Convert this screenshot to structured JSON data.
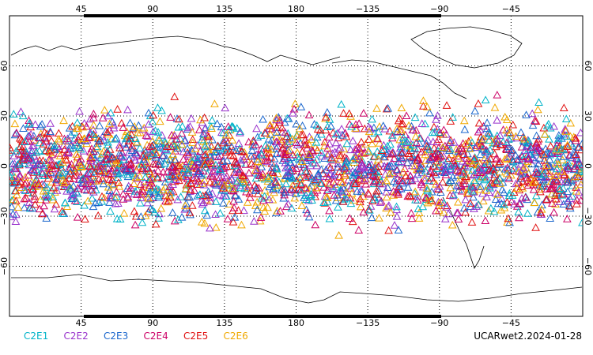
{
  "map": {
    "lon_ticks": [
      {
        "lon": 45,
        "label": "45"
      },
      {
        "lon": 90,
        "label": "90"
      },
      {
        "lon": 135,
        "label": "135"
      },
      {
        "lon": 180,
        "label": "180"
      },
      {
        "lon": 225,
        "label": "−135"
      },
      {
        "lon": 270,
        "label": "−90"
      },
      {
        "lon": 315,
        "label": "−45"
      }
    ],
    "lat_ticks": [
      {
        "lat": 60,
        "label": "60"
      },
      {
        "lat": 30,
        "label": "30"
      },
      {
        "lat": 0,
        "label": "0"
      },
      {
        "lat": -30,
        "label": "−30"
      },
      {
        "lat": -60,
        "label": "−60"
      }
    ],
    "lon_range": [
      0,
      360
    ],
    "lat_range": [
      -90,
      90
    ],
    "gridlines": true,
    "marker": "open-triangle",
    "coverage_lat_range": [
      -45,
      45
    ]
  },
  "legend": [
    {
      "label": "C2E1",
      "color": "#00b3c8"
    },
    {
      "label": "C2E2",
      "color": "#9933cc"
    },
    {
      "label": "C2E3",
      "color": "#1a66cc"
    },
    {
      "label": "C2E4",
      "color": "#cc0066"
    },
    {
      "label": "C2E5",
      "color": "#e01010"
    },
    {
      "label": "C2E6",
      "color": "#f0a800"
    }
  ],
  "footer": {
    "title": "UCARwet2.2024-01-28"
  }
}
